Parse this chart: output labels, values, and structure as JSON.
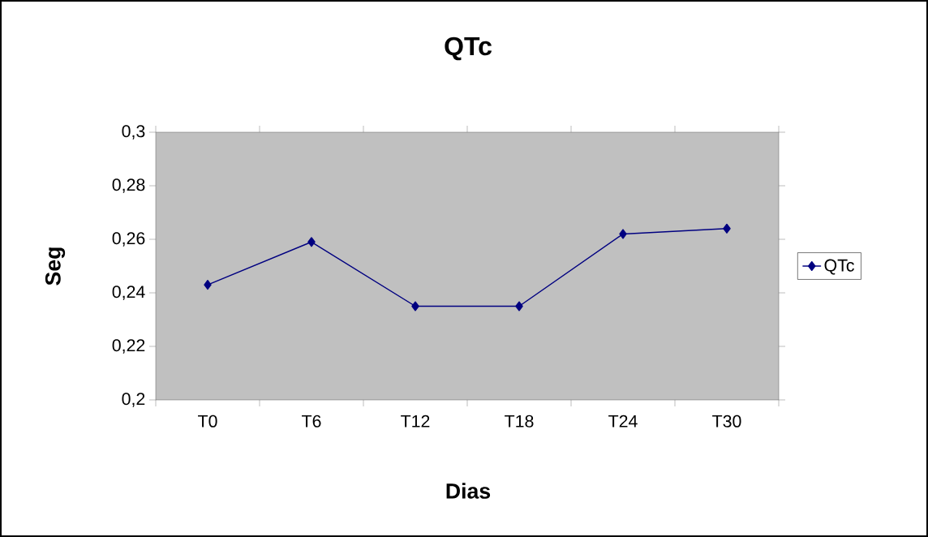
{
  "chart_data": {
    "type": "line",
    "title": "QTc",
    "xlabel": "Dias",
    "ylabel": "Seg",
    "categories": [
      "T0",
      "T6",
      "T12",
      "T18",
      "T24",
      "T30"
    ],
    "series": [
      {
        "name": "QTc",
        "color": "#000080",
        "values": [
          0.243,
          0.259,
          0.235,
          0.235,
          0.262,
          0.264
        ]
      }
    ],
    "ylim": [
      0.2,
      0.3
    ],
    "yticks": [
      {
        "value": 0.2,
        "label": "0,2"
      },
      {
        "value": 0.22,
        "label": "0,22"
      },
      {
        "value": 0.24,
        "label": "0,24"
      },
      {
        "value": 0.26,
        "label": "0,26"
      },
      {
        "value": 0.28,
        "label": "0,28"
      },
      {
        "value": 0.3,
        "label": "0,3"
      }
    ],
    "grid": false,
    "legend": "right",
    "marker": "diamond",
    "line_style": "solid"
  }
}
